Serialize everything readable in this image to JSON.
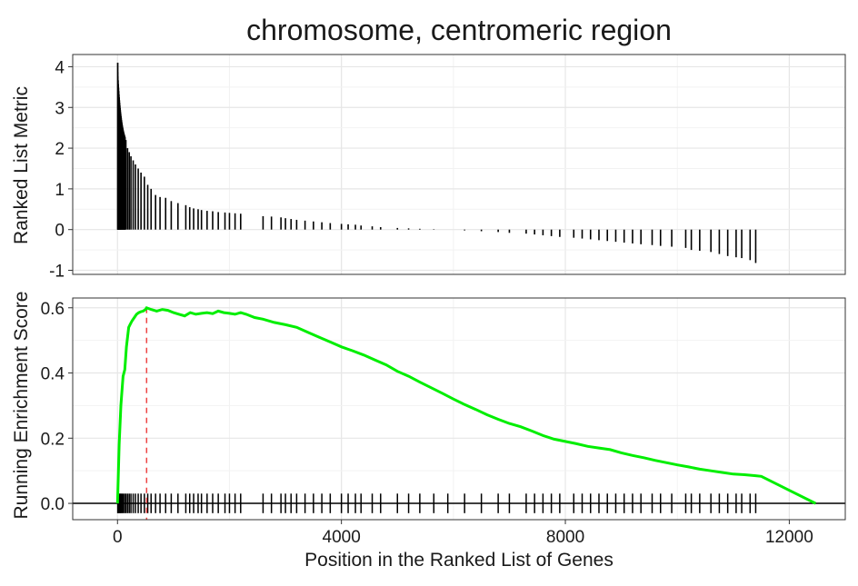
{
  "chart_data": [
    {
      "panel": "top",
      "type": "bar",
      "title": "chromosome, centromeric region",
      "ylabel": "Ranked List Metric",
      "xlim": [
        -800,
        13000
      ],
      "ylim": [
        -1.1,
        4.3
      ],
      "yticks": [
        -1,
        0,
        1,
        2,
        3,
        4
      ],
      "series": [
        {
          "name": "ranked list metric",
          "x": [
            5,
            15,
            30,
            45,
            60,
            80,
            100,
            125,
            150,
            180,
            210,
            240,
            280,
            320,
            370,
            420,
            480,
            540,
            600,
            680,
            760,
            860,
            960,
            1080,
            1220,
            1290,
            1360,
            1440,
            1500,
            1600,
            1700,
            1800,
            1920,
            2000,
            2100,
            2200,
            2600,
            2750,
            2920,
            3000,
            3100,
            3200,
            3350,
            3500,
            3650,
            3800,
            4000,
            4120,
            4250,
            4350,
            4550,
            4700,
            5000,
            5200,
            5400,
            5650,
            5900,
            6200,
            6500,
            6800,
            7000,
            7300,
            7450,
            7600,
            7750,
            7900,
            8150,
            8300,
            8450,
            8600,
            8750,
            8900,
            9050,
            9200,
            9350,
            9550,
            9700,
            9900,
            10150,
            10250,
            10400,
            10600,
            10750,
            10900,
            11050,
            11150,
            11300,
            11400
          ],
          "values": [
            4.1,
            3.2,
            2.8,
            2.7,
            2.6,
            2.5,
            2.4,
            2.3,
            2.2,
            2.0,
            1.9,
            1.8,
            1.7,
            1.6,
            1.5,
            1.4,
            1.3,
            1.1,
            1.0,
            0.85,
            0.8,
            0.78,
            0.7,
            0.65,
            0.6,
            0.55,
            0.52,
            0.5,
            0.48,
            0.46,
            0.45,
            0.43,
            0.42,
            0.41,
            0.4,
            0.39,
            0.33,
            0.32,
            0.3,
            0.28,
            0.26,
            0.24,
            0.22,
            0.2,
            0.18,
            0.16,
            0.14,
            0.13,
            0.12,
            0.1,
            0.08,
            0.06,
            0.04,
            0.03,
            0.02,
            0.01,
            0.0,
            -0.02,
            -0.04,
            -0.06,
            -0.08,
            -0.1,
            -0.12,
            -0.14,
            -0.16,
            -0.18,
            -0.2,
            -0.22,
            -0.24,
            -0.26,
            -0.28,
            -0.3,
            -0.32,
            -0.34,
            -0.36,
            -0.38,
            -0.4,
            -0.42,
            -0.45,
            -0.5,
            -0.52,
            -0.55,
            -0.6,
            -0.65,
            -0.68,
            -0.7,
            -0.75,
            -0.82
          ]
        }
      ]
    },
    {
      "panel": "bottom",
      "type": "line",
      "xlabel": "Position in the Ranked List of Genes",
      "ylabel": "Running Enrichment Score",
      "xlim": [
        -800,
        13000
      ],
      "ylim": [
        -0.05,
        0.63
      ],
      "xticks": [
        0,
        4000,
        8000,
        12000
      ],
      "xtick_labels": [
        "0",
        "4000",
        "8000",
        "12000"
      ],
      "yticks": [
        0.0,
        0.2,
        0.4,
        0.6
      ],
      "ytick_labels": [
        "0.0",
        "0.2",
        "0.4",
        "0.6"
      ],
      "peak_position": 520,
      "line_color": "#00ee00",
      "peak_line_color": "#ee4444",
      "series": [
        {
          "name": "running enrichment score",
          "x": [
            0,
            30,
            60,
            100,
            130,
            160,
            200,
            230,
            260,
            300,
            340,
            380,
            420,
            460,
            500,
            520,
            600,
            700,
            800,
            900,
            1000,
            1100,
            1200,
            1300,
            1400,
            1500,
            1600,
            1700,
            1800,
            1900,
            2000,
            2100,
            2200,
            2300,
            2450,
            2600,
            2800,
            3000,
            3200,
            3400,
            3600,
            3800,
            4000,
            4200,
            4400,
            4600,
            4800,
            5000,
            5200,
            5400,
            5600,
            5800,
            6000,
            6200,
            6400,
            6600,
            6800,
            7000,
            7200,
            7400,
            7600,
            7800,
            8000,
            8200,
            8400,
            8600,
            8800,
            9000,
            9200,
            9400,
            9600,
            9800,
            10000,
            10200,
            10400,
            10600,
            10800,
            11000,
            11200,
            11400,
            11500,
            12000,
            12470
          ],
          "values": [
            0.0,
            0.18,
            0.3,
            0.39,
            0.41,
            0.48,
            0.54,
            0.55,
            0.56,
            0.57,
            0.58,
            0.585,
            0.588,
            0.59,
            0.595,
            0.6,
            0.595,
            0.59,
            0.595,
            0.592,
            0.585,
            0.58,
            0.575,
            0.585,
            0.58,
            0.583,
            0.585,
            0.582,
            0.59,
            0.585,
            0.583,
            0.58,
            0.585,
            0.58,
            0.57,
            0.565,
            0.555,
            0.548,
            0.54,
            0.525,
            0.51,
            0.495,
            0.48,
            0.468,
            0.455,
            0.44,
            0.425,
            0.405,
            0.39,
            0.372,
            0.355,
            0.338,
            0.32,
            0.303,
            0.288,
            0.272,
            0.258,
            0.245,
            0.235,
            0.222,
            0.208,
            0.197,
            0.19,
            0.183,
            0.175,
            0.17,
            0.165,
            0.155,
            0.147,
            0.14,
            0.132,
            0.125,
            0.118,
            0.112,
            0.105,
            0.1,
            0.095,
            0.09,
            0.088,
            0.085,
            0.083,
            0.04,
            0.0
          ]
        }
      ],
      "hit_positions": [
        5,
        15,
        30,
        45,
        60,
        80,
        100,
        125,
        150,
        180,
        210,
        240,
        280,
        320,
        370,
        420,
        480,
        540,
        600,
        680,
        760,
        860,
        960,
        1080,
        1220,
        1290,
        1360,
        1440,
        1500,
        1600,
        1700,
        1800,
        1920,
        2000,
        2100,
        2200,
        2600,
        2750,
        2920,
        3000,
        3100,
        3200,
        3350,
        3500,
        3650,
        3800,
        4000,
        4120,
        4250,
        4350,
        4550,
        4700,
        5000,
        5200,
        5400,
        5650,
        5900,
        6200,
        6500,
        6800,
        7000,
        7300,
        7450,
        7600,
        7750,
        7900,
        8150,
        8300,
        8450,
        8600,
        8750,
        8900,
        9050,
        9200,
        9350,
        9550,
        9700,
        9900,
        10150,
        10250,
        10400,
        10600,
        10750,
        10900,
        11050,
        11150,
        11300,
        11400
      ]
    }
  ]
}
